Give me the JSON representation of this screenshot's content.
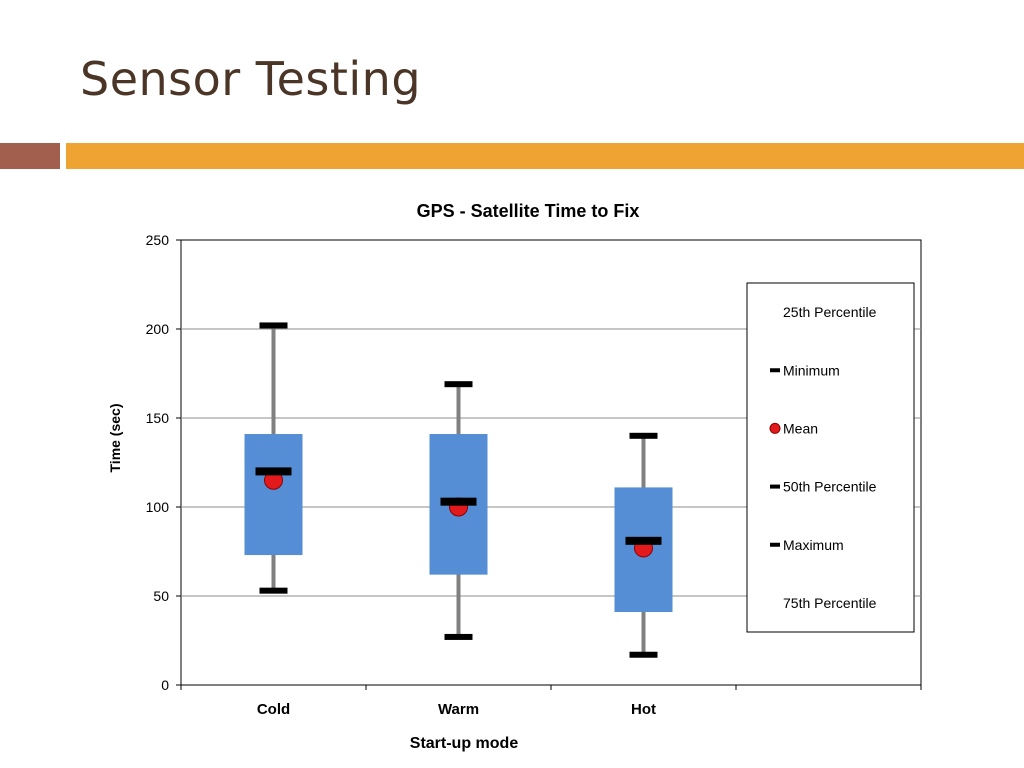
{
  "slide": {
    "title": "Sensor Testing"
  },
  "colors": {
    "title": "#4a3526",
    "accent_left": "#a25f4e",
    "accent_right": "#eea332",
    "box_fill": "#558ed5",
    "whisker": "#808080",
    "marker": "#000000",
    "mean_fill": "#e31a1c",
    "grid": "#8c8c8c"
  },
  "chart_data": {
    "type": "boxplot",
    "title": "GPS - Satellite Time to Fix",
    "xlabel": "Start-up mode",
    "ylabel": "Time (sec)",
    "ylim": [
      0,
      250
    ],
    "yticks": [
      0,
      50,
      100,
      150,
      200,
      250
    ],
    "grid": true,
    "legend_position": "right",
    "categories": [
      "Cold",
      "Warm",
      "Hot"
    ],
    "series": [
      {
        "category": "Cold",
        "min": 53,
        "p25": 73,
        "p50": 120,
        "mean": 115,
        "p75": 141,
        "max": 202
      },
      {
        "category": "Warm",
        "min": 27,
        "p25": 62,
        "p50": 103,
        "mean": 100,
        "p75": 141,
        "max": 169
      },
      {
        "category": "Hot",
        "min": 17,
        "p25": 41,
        "p50": 81,
        "mean": 77,
        "p75": 111,
        "max": 140
      }
    ],
    "legend": [
      {
        "label": "25th Percentile",
        "marker": "none"
      },
      {
        "label": "Minimum",
        "marker": "dash"
      },
      {
        "label": "Mean",
        "marker": "circle"
      },
      {
        "label": "50th Percentile",
        "marker": "dash"
      },
      {
        "label": "Maximum",
        "marker": "dash"
      },
      {
        "label": "75th Percentile",
        "marker": "none"
      }
    ]
  }
}
